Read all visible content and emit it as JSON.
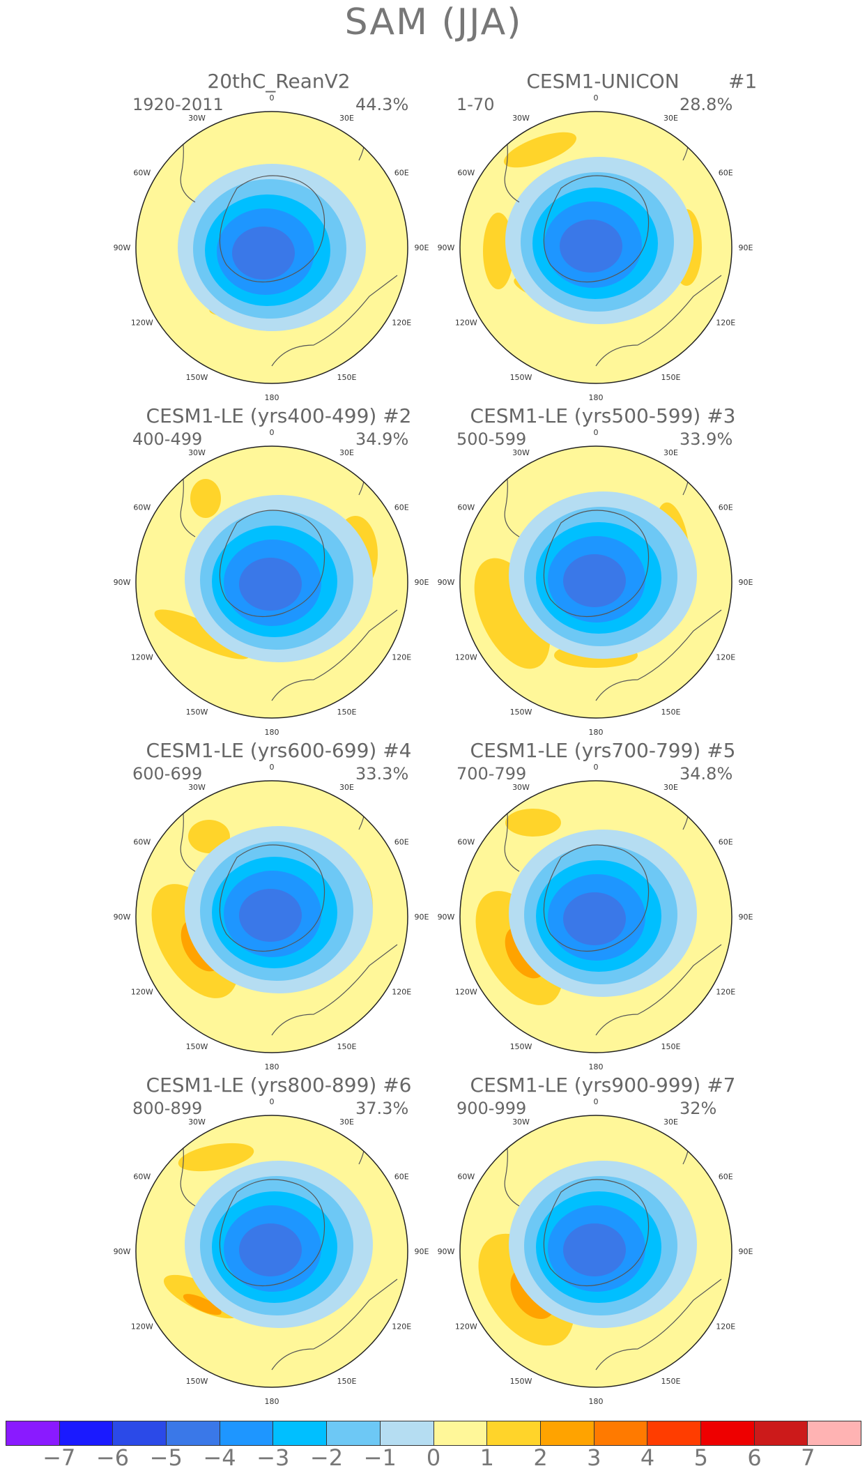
{
  "title": "SAM (JJA)",
  "map_labels": {
    "lon": [
      "0",
      "30E",
      "60E",
      "90E",
      "120E",
      "150E",
      "180",
      "150W",
      "120W",
      "90W",
      "60W",
      "30W"
    ]
  },
  "colors": {
    "ocean_default": "#fff799",
    "coast": "#555555"
  },
  "panels": [
    {
      "title": "20thC_ReanV2",
      "tag": "",
      "years": "1920-2011",
      "pct": "44.3%"
    },
    {
      "title": "CESM1-UNICON",
      "tag": "#1",
      "years": "1-70",
      "pct": "28.8%"
    },
    {
      "title": "CESM1-LE (yrs400-499) #2",
      "tag": "",
      "years": "400-499",
      "pct": "34.9%"
    },
    {
      "title": "CESM1-LE (yrs500-599) #3",
      "tag": "",
      "years": "500-599",
      "pct": "33.9%"
    },
    {
      "title": "CESM1-LE (yrs600-699) #4",
      "tag": "",
      "years": "600-699",
      "pct": "33.3%"
    },
    {
      "title": "CESM1-LE (yrs700-799) #5",
      "tag": "",
      "years": "700-799",
      "pct": "34.8%"
    },
    {
      "title": "CESM1-LE (yrs800-899) #6",
      "tag": "",
      "years": "800-899",
      "pct": "37.3%"
    },
    {
      "title": "CESM1-LE (yrs900-999) #7",
      "tag": "",
      "years": "900-999",
      "pct": "32%"
    }
  ],
  "colorbar": {
    "colors": [
      "#8a1aff",
      "#1a1aff",
      "#2b4ae8",
      "#3a78e8",
      "#1e96ff",
      "#00bfff",
      "#6dc8f5",
      "#b5ddf2",
      "#fff799",
      "#ffd42a",
      "#ffa300",
      "#ff7a00",
      "#ff3d00",
      "#ee0000",
      "#cc1a1a",
      "#ffb3b3"
    ],
    "labels": [
      "-7",
      "-6",
      "-5",
      "-4",
      "-3",
      "-2",
      "-1",
      "0",
      "1",
      "2",
      "3",
      "4",
      "5",
      "6",
      "7"
    ]
  }
}
